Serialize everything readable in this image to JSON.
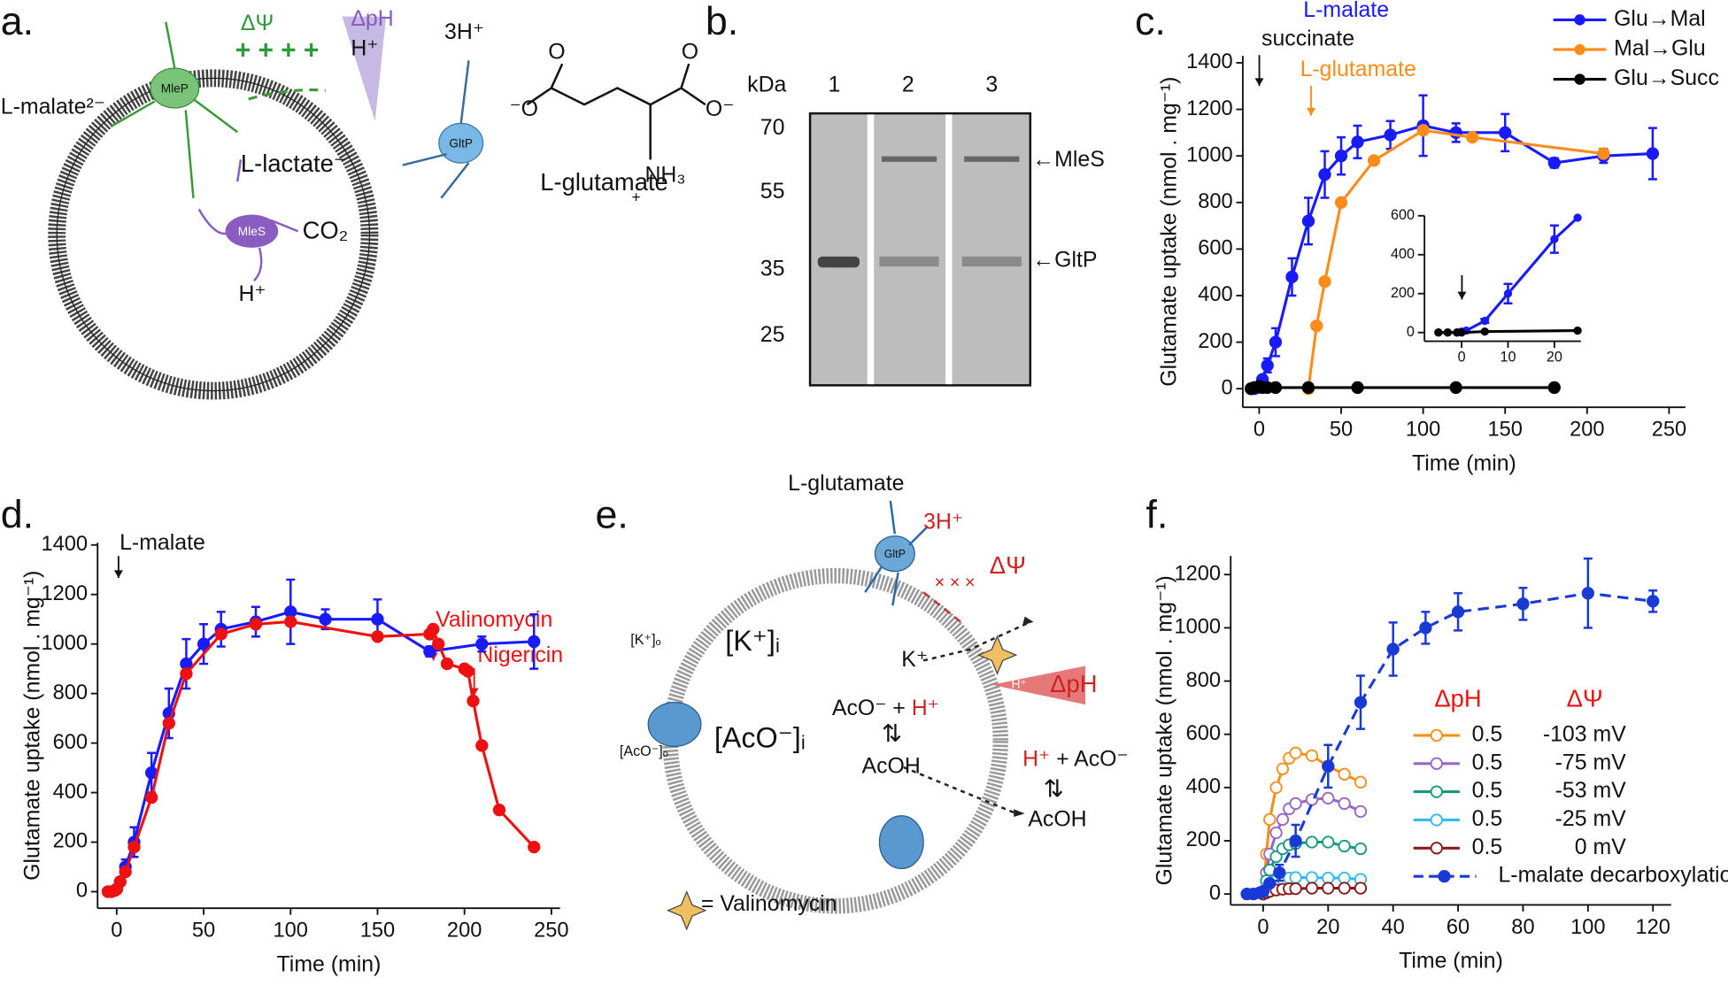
{
  "panel_labels": [
    "a.",
    "b.",
    "c.",
    "d.",
    "e.",
    "f."
  ],
  "diagram_a": {
    "dpsi": "ΔΨ",
    "charges": "+ + + +",
    "dph": "ΔpH",
    "h_out": "H⁺",
    "h3": "3H⁺",
    "malate": "L-malate²⁻",
    "mlep": "MleP",
    "lactate": "L-lactate⁻",
    "mles": "MleS",
    "co2": "CO₂",
    "h_in": "H⁺",
    "gltp": "GltP",
    "o1": "O",
    "o2": "O",
    "o_left": "⁻O",
    "o_right": "O⁻",
    "nh3": "NH₃",
    "plus": "+",
    "glutamate": "L-glutamate"
  },
  "gel_b": {
    "kda": "kDa",
    "lanes": [
      "1",
      "2",
      "3"
    ],
    "markers": [
      "70",
      "55",
      "35",
      "25"
    ],
    "bands": [
      "←MleS",
      "←GltP"
    ]
  },
  "diagram_e": {
    "glutamate": "L-glutamate",
    "h3": "3H⁺",
    "gltp": "GltP",
    "dpsi": "ΔΨ",
    "crosses": "× × ×",
    "k_out": "[K⁺]ₒ",
    "k_in": "[K⁺]ᵢ",
    "k": "K⁺",
    "dph": "ΔpH",
    "h_wedge": "H⁺",
    "aco_in": "AcO⁻ + ",
    "h_in": "H⁺",
    "acoh_in": "AcOH",
    "h_out": "H⁺",
    "aco_out": " + AcO⁻",
    "acoh_out": "AcOH",
    "aco_o": "[AcO⁻]ₒ",
    "aco_i": "[AcO⁻]ᵢ",
    "valino": "= Valinomycin"
  },
  "chart_data": [
    {
      "type": "line",
      "xlabel": "Time (min)",
      "ylabel": "Glutamate uptake (nmol . mg⁻¹)",
      "xlim": [
        -10,
        260
      ],
      "ylim": [
        -80,
        1430
      ],
      "xticks": [
        0,
        50,
        100,
        150,
        200,
        250
      ],
      "yticks": [
        0,
        200,
        400,
        600,
        800,
        1000,
        1200,
        1400
      ],
      "legend": "upper right",
      "annotations": [
        "L-malate",
        "succinate",
        "L-glutamate"
      ],
      "series": [
        {
          "name": "Glu→Mal",
          "color": "#1a1aff",
          "x": [
            -5,
            -3,
            -1,
            0,
            2,
            5,
            10,
            20,
            30,
            40,
            50,
            60,
            80,
            100,
            120,
            150,
            180,
            210,
            240
          ],
          "values": [
            0,
            0,
            5,
            10,
            40,
            100,
            200,
            480,
            720,
            920,
            1000,
            1060,
            1090,
            1130,
            1100,
            1100,
            970,
            1000,
            1010
          ],
          "errors": [
            0,
            0,
            0,
            0,
            10,
            30,
            60,
            80,
            100,
            100,
            80,
            70,
            60,
            130,
            40,
            80,
            20,
            30,
            110
          ]
        },
        {
          "name": "Mal→Glu",
          "color": "#ff8c1a",
          "x": [
            30,
            35,
            40,
            50,
            70,
            100,
            130,
            210
          ],
          "values": [
            0,
            270,
            460,
            800,
            980,
            1110,
            1080,
            1010
          ]
        },
        {
          "name": "Glu→Succ",
          "color": "#000000",
          "x": [
            -5,
            -3,
            0,
            2,
            5,
            10,
            30,
            60,
            120,
            180
          ],
          "values": [
            0,
            5,
            10,
            5,
            5,
            5,
            5,
            5,
            5,
            5
          ]
        }
      ]
    },
    {
      "type": "line",
      "xlabel": "Time (min)",
      "ylabel": "Glutamate uptake (nmol . mg⁻¹)",
      "xlim": [
        -11,
        255
      ],
      "ylim": [
        -67,
        1409
      ],
      "xticks": [
        0,
        50,
        100,
        150,
        200,
        250
      ],
      "yticks": [
        0,
        200,
        400,
        600,
        800,
        1000,
        1200,
        1400
      ],
      "annotations": [
        "L-malate",
        "Valinomycin",
        "Nigericin"
      ],
      "series": [
        {
          "color": "#1a1aff",
          "x": [
            -5,
            -3,
            -1,
            0,
            2,
            5,
            10,
            20,
            30,
            40,
            50,
            60,
            80,
            100,
            120,
            150,
            180,
            210,
            240
          ],
          "values": [
            0,
            0,
            5,
            10,
            40,
            100,
            200,
            480,
            720,
            920,
            1000,
            1060,
            1090,
            1130,
            1100,
            1100,
            970,
            1000,
            1010
          ],
          "errors": [
            0,
            0,
            0,
            0,
            10,
            30,
            60,
            80,
            100,
            100,
            80,
            70,
            60,
            130,
            40,
            80,
            20,
            30,
            110
          ]
        },
        {
          "color": "#ee1111",
          "x": [
            -5,
            -3,
            -1,
            0,
            2,
            5,
            10,
            20,
            30,
            40,
            60,
            80,
            100,
            150,
            180,
            182,
            185,
            190,
            200,
            202,
            205,
            210,
            220,
            240
          ],
          "values": [
            0,
            0,
            5,
            10,
            40,
            80,
            180,
            380,
            680,
            880,
            1040,
            1080,
            1090,
            1030,
            1040,
            1060,
            1000,
            920,
            900,
            890,
            770,
            590,
            330,
            180
          ]
        }
      ]
    },
    {
      "type": "line",
      "xlabel": "Time (min)",
      "ylabel": "Glutamate uptake (nmol . mg⁻¹)",
      "xlim": [
        -10,
        125.6
      ],
      "ylim": [
        -41,
        1270
      ],
      "xticks": [
        0,
        20,
        40,
        60,
        80,
        100,
        120
      ],
      "yticks": [
        0,
        200,
        400,
        600,
        800,
        1000,
        1200
      ],
      "legend_headers": [
        "ΔpH",
        "ΔΨ"
      ],
      "series": [
        {
          "ph": "0.5",
          "name": "-103 mV",
          "color": "#f5901e",
          "open": true,
          "x": [
            0,
            1,
            2,
            4,
            6,
            8,
            10,
            15,
            20,
            25,
            30
          ],
          "values": [
            0,
            150,
            280,
            400,
            470,
            510,
            530,
            520,
            480,
            450,
            420
          ]
        },
        {
          "ph": "0.5",
          "name": "-75 mV",
          "color": "#9966cc",
          "open": true,
          "x": [
            0,
            1,
            2,
            4,
            6,
            8,
            10,
            15,
            20,
            25,
            30
          ],
          "values": [
            0,
            80,
            150,
            230,
            280,
            320,
            340,
            355,
            360,
            340,
            310
          ]
        },
        {
          "ph": "0.5",
          "name": "-53 mV",
          "color": "#1a9980",
          "open": true,
          "x": [
            0,
            1,
            2,
            4,
            6,
            8,
            10,
            15,
            20,
            25,
            30
          ],
          "values": [
            0,
            50,
            90,
            140,
            170,
            185,
            190,
            195,
            195,
            180,
            170
          ]
        },
        {
          "ph": "0.5",
          "name": "-25 mV",
          "color": "#33bbee",
          "open": true,
          "x": [
            0,
            1,
            2,
            4,
            6,
            8,
            10,
            15,
            20,
            25,
            30
          ],
          "values": [
            0,
            20,
            35,
            50,
            55,
            60,
            62,
            62,
            60,
            60,
            55
          ]
        },
        {
          "ph": "0.5",
          "name": "0 mV",
          "color": "#8b1a1a",
          "open": true,
          "x": [
            0,
            1,
            2,
            4,
            6,
            8,
            10,
            15,
            20,
            25,
            30
          ],
          "values": [
            0,
            5,
            10,
            15,
            18,
            20,
            20,
            22,
            22,
            22,
            22
          ]
        },
        {
          "name": "L-malate decarboxylation",
          "color": "#1a3ad8",
          "dashed": true,
          "x": [
            -5,
            -3,
            -1,
            0,
            2,
            5,
            10,
            20,
            30,
            40,
            50,
            60,
            80,
            100,
            120
          ],
          "values": [
            0,
            0,
            5,
            10,
            40,
            80,
            200,
            480,
            720,
            920,
            1000,
            1060,
            1090,
            1130,
            1100
          ],
          "errors": [
            0,
            0,
            0,
            0,
            10,
            30,
            60,
            80,
            100,
            100,
            60,
            70,
            60,
            130,
            40
          ]
        }
      ]
    },
    {
      "type": "line",
      "xlim": [
        -8,
        25.7
      ],
      "ylim": [
        -45,
        600
      ],
      "xticks": [
        0,
        10,
        20
      ],
      "yticks": [
        0,
        200,
        400,
        600
      ],
      "series": [
        {
          "color": "#1a1aff",
          "x": [
            -5,
            -3,
            -1,
            0,
            1,
            5,
            10,
            20,
            25
          ],
          "values": [
            0,
            0,
            0,
            5,
            10,
            60,
            200,
            480,
            590
          ],
          "errors": [
            0,
            0,
            0,
            0,
            0,
            10,
            50,
            70,
            0
          ]
        },
        {
          "color": "#000000",
          "x": [
            -5,
            -3,
            -1,
            0,
            5,
            25
          ],
          "values": [
            0,
            0,
            0,
            0,
            5,
            10
          ]
        }
      ]
    }
  ]
}
